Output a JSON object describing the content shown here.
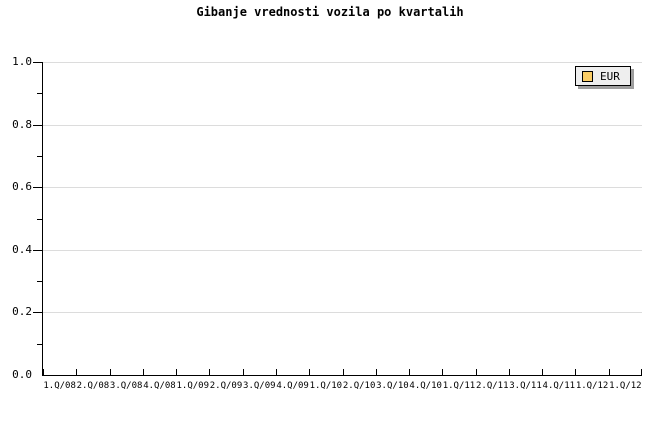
{
  "title": "Gibanje vrednosti vozila po kvartalih",
  "legend": {
    "label": "EUR",
    "swatch_color": "#facd66",
    "position": "top-right"
  },
  "colors": {
    "background": "#ffffff",
    "axis": "#000000",
    "gridline": "#dcdcdc",
    "text": "#000000",
    "legend_background": "#eeeeee",
    "legend_border": "#000000",
    "legend_shadow": "#9e9e9e"
  },
  "chart_data": {
    "type": "line",
    "title": "Gibanje vrednosti vozila po kvartalih",
    "categories": [
      "1.Q/08",
      "2.Q/08",
      "3.Q/08",
      "4.Q/08",
      "1.Q/09",
      "2.Q/09",
      "3.Q/09",
      "4.Q/09",
      "1.Q/10",
      "2.Q/10",
      "3.Q/10",
      "4.Q/10",
      "1.Q/11",
      "2.Q/11",
      "3.Q/11",
      "4.Q/11",
      "1.Q/12",
      "1.Q/12"
    ],
    "series": [
      {
        "name": "EUR",
        "color": "#facd66",
        "values": []
      }
    ],
    "note": "empty plot area - no data points rendered",
    "xlabel": "",
    "ylabel": "",
    "ylim": [
      0.0,
      1.0
    ],
    "y_tick_labels": [
      "0.0",
      "0.2",
      "0.4",
      "0.6",
      "0.8",
      "1.0"
    ],
    "y_major_ticks": [
      0.0,
      0.2,
      0.4,
      0.6,
      0.8,
      1.0
    ],
    "y_minor_ticks": [
      0.1,
      0.3,
      0.5,
      0.7,
      0.9
    ],
    "x_tick_count": 19,
    "grid": "horizontal-major-only",
    "legend_position": "top-right"
  }
}
